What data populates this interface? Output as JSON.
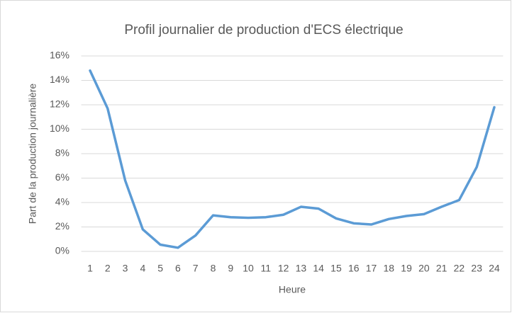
{
  "chart_data": {
    "type": "line",
    "title": "Profil journalier de production d'ECS électrique",
    "x_label": "Heure",
    "y_label": "Part de la production journalière",
    "categories": [
      "1",
      "2",
      "3",
      "4",
      "5",
      "6",
      "7",
      "8",
      "9",
      "10",
      "11",
      "12",
      "13",
      "14",
      "15",
      "16",
      "17",
      "18",
      "19",
      "20",
      "21",
      "22",
      "23",
      "24"
    ],
    "series": [
      {
        "color": "#5b9bd5",
        "values": [
          14.8,
          11.7,
          5.8,
          1.8,
          0.55,
          0.3,
          1.3,
          2.95,
          2.8,
          2.75,
          2.8,
          3.0,
          3.65,
          3.5,
          2.7,
          2.3,
          2.2,
          2.65,
          2.9,
          3.05,
          3.65,
          4.2,
          6.9,
          11.8
        ]
      }
    ],
    "ylim": [
      0,
      16
    ],
    "yticks": [
      {
        "value": 0,
        "label": "0%"
      },
      {
        "value": 2,
        "label": "2%"
      },
      {
        "value": 4,
        "label": "4%"
      },
      {
        "value": 6,
        "label": "6%"
      },
      {
        "value": 8,
        "label": "8%"
      },
      {
        "value": 10,
        "label": "10%"
      },
      {
        "value": 12,
        "label": "12%"
      },
      {
        "value": 14,
        "label": "14%"
      },
      {
        "value": 16,
        "label": "16%"
      }
    ],
    "grid": true
  }
}
